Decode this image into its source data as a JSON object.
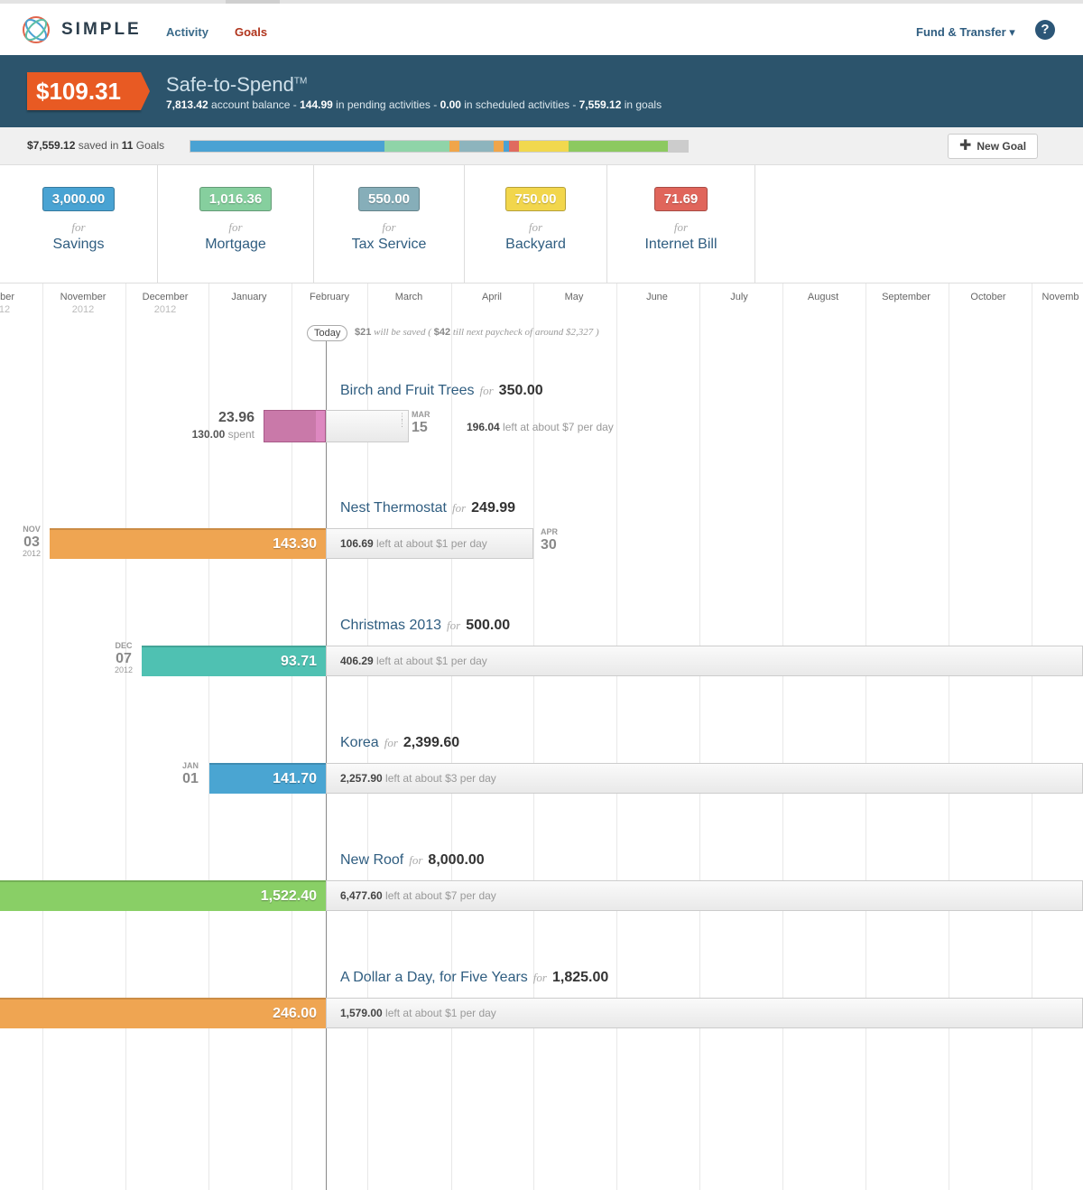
{
  "app": {
    "brand": "SIMPLE"
  },
  "nav": {
    "activity": "Activity",
    "goals": "Goals",
    "fund_transfer": "Fund & Transfer ▾",
    "help": "?"
  },
  "safe_to_spend": {
    "amount": "$109.31",
    "title": "Safe-to-Spend",
    "tm": "TM",
    "balance": "7,813.42",
    "balance_label": " account balance - ",
    "pending": "144.99",
    "pending_label": " in pending activities - ",
    "scheduled": "0.00",
    "scheduled_label": " in scheduled activities - ",
    "goals": "7,559.12",
    "goals_label": " in goals"
  },
  "saved_bar": {
    "total": "$7,559.12",
    "mid": " saved in ",
    "count": "11",
    "suffix": " Goals",
    "new_goal": "New Goal",
    "segments": [
      {
        "color": "#4aa2d3",
        "fraction": 0.39
      },
      {
        "color": "#8fd4a8",
        "fraction": 0.13
      },
      {
        "color": "#f0a54a",
        "fraction": 0.02
      },
      {
        "color": "#8db4bd",
        "fraction": 0.07
      },
      {
        "color": "#f0a54a",
        "fraction": 0.02
      },
      {
        "color": "#4aa2d3",
        "fraction": 0.01
      },
      {
        "color": "#e06b5f",
        "fraction": 0.02
      },
      {
        "color": "#f1d84e",
        "fraction": 0.1
      },
      {
        "color": "#8cc960",
        "fraction": 0.2
      }
    ]
  },
  "categories": [
    {
      "amount": "3,000.00",
      "for": "for",
      "name": "Savings",
      "color": "#49a3d3"
    },
    {
      "amount": "1,016.36",
      "for": "for",
      "name": "Mortgage",
      "color": "#86cf9e"
    },
    {
      "amount": "550.00",
      "for": "for",
      "name": "Tax Service",
      "color": "#86aeb9"
    },
    {
      "amount": "750.00",
      "for": "for",
      "name": "Backyard",
      "color": "#f2d64c"
    },
    {
      "amount": "71.69",
      "for": "for",
      "name": "Internet Bill",
      "color": "#e0655b"
    }
  ],
  "timeline": {
    "months": [
      {
        "name": "ober",
        "year": "12"
      },
      {
        "name": "November",
        "year": "2012"
      },
      {
        "name": "December",
        "year": "2012"
      },
      {
        "name": "January",
        "year": ""
      },
      {
        "name": "February",
        "year": ""
      },
      {
        "name": "March",
        "year": ""
      },
      {
        "name": "April",
        "year": ""
      },
      {
        "name": "May",
        "year": ""
      },
      {
        "name": "June",
        "year": ""
      },
      {
        "name": "July",
        "year": ""
      },
      {
        "name": "August",
        "year": ""
      },
      {
        "name": "September",
        "year": ""
      },
      {
        "name": "October",
        "year": ""
      },
      {
        "name": "Novemb",
        "year": ""
      }
    ],
    "today": "Today",
    "will_save": "$21",
    "will_save_text": " will be saved  ( ",
    "till_paycheck": "$42",
    "till_text": " till next paycheck of around $2,327  )"
  },
  "goals": [
    {
      "name": "Birch and Fruit Trees",
      "for": "for",
      "amount": "350.00",
      "saved": "23.96",
      "spent": "130.00",
      "spent_label": " spent",
      "end_month": "MAR",
      "end_day": "15",
      "left": "196.04",
      "left_text": " left at about $7 per day"
    },
    {
      "name": "Nest Thermostat",
      "for": "for",
      "amount": "249.99",
      "saved": "143.30",
      "start_month": "NOV",
      "start_day": "03",
      "start_year": "2012",
      "end_month": "APR",
      "end_day": "30",
      "left": "106.69",
      "left_text": " left at about $1 per day"
    },
    {
      "name": "Christmas 2013",
      "for": "for",
      "amount": "500.00",
      "saved": "93.71",
      "start_month": "DEC",
      "start_day": "07",
      "start_year": "2012",
      "left": "406.29",
      "left_text": " left at about $1 per day"
    },
    {
      "name": "Korea",
      "for": "for",
      "amount": "2,399.60",
      "saved": "141.70",
      "start_month": "JAN",
      "start_day": "01",
      "left": "2,257.90",
      "left_text": " left at about $3 per day"
    },
    {
      "name": "New Roof",
      "for": "for",
      "amount": "8,000.00",
      "saved": "1,522.40",
      "left": "6,477.60",
      "left_text": " left at about $7 per day"
    },
    {
      "name": "A Dollar a Day, for Five Years",
      "for": "for",
      "amount": "1,825.00",
      "saved": "246.00",
      "left": "1,579.00",
      "left_text": " left at about $1 per day"
    }
  ]
}
